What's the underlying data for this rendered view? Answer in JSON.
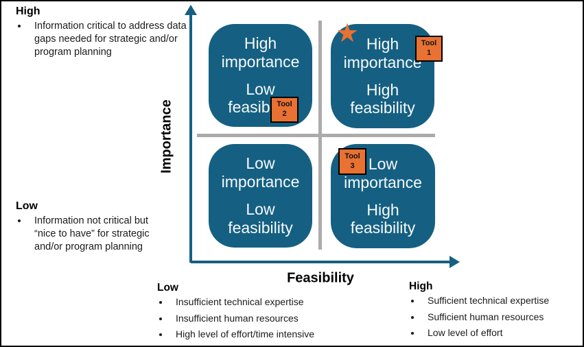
{
  "colors": {
    "quadrant_fill": "#156082",
    "axis": "#156082",
    "marker_orange": "#E97132",
    "grid_gray": "#ABABAB",
    "quadrant_text": "#FFFFFF",
    "annotation_text": "#000000"
  },
  "importance_axis": {
    "label": "Importance",
    "high": {
      "heading": "High",
      "bullet": "Information critical to address data gaps needed for strategic and/or program planning"
    },
    "low": {
      "heading": "Low",
      "bullet": "Information not critical but “nice to have” for strategic and/or program planning"
    }
  },
  "feasibility_axis": {
    "label": "Feasibility",
    "low": {
      "heading": "Low",
      "bullets": [
        "Insufficient technical expertise",
        "Insufficient human resources",
        "High level of effort/time intensive"
      ]
    },
    "high": {
      "heading": "High",
      "bullets": [
        "Sufficient technical expertise",
        "Sufficient human resources",
        "Low level of effort"
      ]
    }
  },
  "quadrants": {
    "top_left": {
      "importance": "High importance",
      "feasibility": "Low feasibility"
    },
    "top_right": {
      "importance": "High importance",
      "feasibility": "High feasibility"
    },
    "bottom_left": {
      "importance": "Low importance",
      "feasibility": "Low feasibility"
    },
    "bottom_right": {
      "importance": "Low importance",
      "feasibility": "High feasibility"
    }
  },
  "markers": {
    "star": "★",
    "tools": [
      {
        "line1": "Tool",
        "line2": "1"
      },
      {
        "line1": "Tool",
        "line2": "2"
      },
      {
        "line1": "Tool",
        "line2": "3"
      }
    ]
  }
}
